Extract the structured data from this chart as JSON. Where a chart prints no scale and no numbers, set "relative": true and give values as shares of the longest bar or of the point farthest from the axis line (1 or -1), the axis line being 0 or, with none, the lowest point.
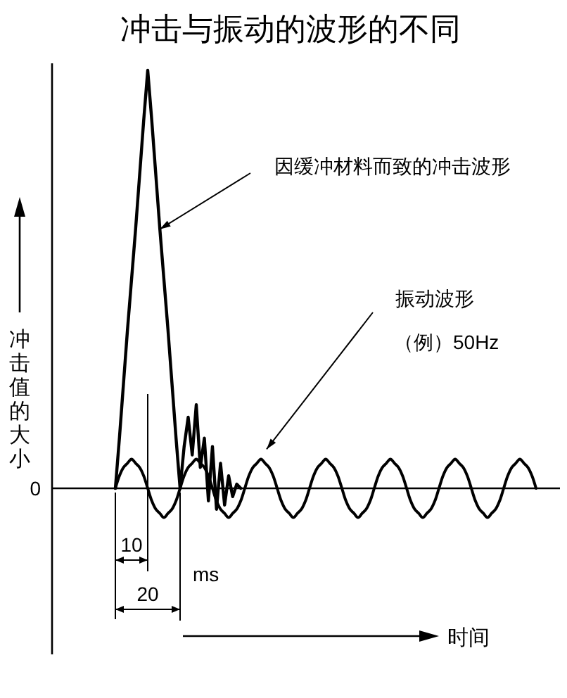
{
  "chart_data": {
    "type": "line",
    "title": "冲击与振动的波形的不同",
    "ylabel": "冲击值的大小",
    "relative": true,
    "line_style": "solid",
    "marker": "none",
    "legend": false,
    "categories": [
      null,
      null,
      null,
      null,
      null,
      null,
      null,
      null,
      null,
      null,
      null,
      null,
      null,
      null,
      null,
      null,
      null,
      null,
      null,
      null,
      null,
      null,
      null,
      null,
      null,
      null,
      null,
      null,
      null,
      null,
      null,
      null,
      null,
      null,
      null,
      null,
      null,
      null,
      null,
      null,
      null,
      null,
      null,
      null,
      null,
      null,
      null,
      null,
      null,
      null,
      null,
      null,
      null,
      null,
      null,
      null,
      null,
      null,
      null,
      null,
      null,
      null,
      null,
      null,
      null,
      null,
      null,
      null,
      null,
      null,
      null,
      null,
      null,
      null,
      null,
      null,
      null,
      null,
      null,
      null,
      null,
      null,
      null,
      null,
      null,
      null,
      null,
      null,
      null,
      null,
      null,
      null,
      null,
      null,
      null,
      null,
      null,
      null,
      null,
      null,
      null,
      null,
      null,
      null,
      null
    ],
    "ref_lines": [
      {
        "axis": "y",
        "value": 0,
        "label": "0"
      }
    ],
    "annotations": [
      "因缓冲材料而致的冲击波形",
      "振动波形",
      "（例）50Hz",
      "ms",
      "10",
      "20",
      "时间"
    ],
    "series": [
      {
        "color": "#000000",
        "values": [
          0,
          0.12,
          0.25,
          0.38,
          0.5,
          0.62,
          0.75,
          0.88,
          1,
          0.88,
          0.75,
          0.62,
          0.5,
          0.38,
          0.25,
          0.12,
          0,
          0.1,
          0.17,
          0.08,
          0.2,
          0.05,
          0.12,
          -0.03,
          0.1,
          -0.05,
          0.06,
          -0.04,
          0.03,
          -0.02,
          0.01,
          0,
          null,
          null,
          null,
          null,
          null,
          null,
          null,
          null,
          null,
          null,
          null,
          null,
          null,
          null,
          null,
          null,
          null,
          null,
          null,
          null,
          null,
          null,
          null,
          null,
          null,
          null,
          null,
          null,
          null,
          null,
          null,
          null,
          null,
          null,
          null,
          null,
          null,
          null,
          null,
          null,
          null,
          null,
          null,
          null,
          null,
          null,
          null,
          null,
          null,
          null,
          null,
          null,
          null,
          null,
          null,
          null,
          null,
          null,
          null,
          null,
          null,
          null,
          null,
          null,
          null,
          null,
          null,
          null,
          null,
          null,
          null,
          null,
          null
        ]
      },
      {
        "color": "#000000",
        "values": [
          0,
          0.03,
          0.05,
          0.06,
          0.07,
          0.06,
          0.05,
          0.03,
          0,
          -0.03,
          -0.05,
          -0.06,
          -0.07,
          -0.06,
          -0.05,
          -0.03,
          0,
          0.03,
          0.05,
          0.06,
          0.07,
          0.06,
          0.05,
          0.03,
          0,
          -0.03,
          -0.05,
          -0.06,
          -0.07,
          -0.06,
          -0.05,
          -0.03,
          0,
          0.03,
          0.05,
          0.06,
          0.07,
          0.06,
          0.05,
          0.03,
          0,
          -0.03,
          -0.05,
          -0.06,
          -0.07,
          -0.06,
          -0.05,
          -0.03,
          0,
          0.03,
          0.05,
          0.06,
          0.07,
          0.06,
          0.05,
          0.03,
          0,
          -0.03,
          -0.05,
          -0.06,
          -0.07,
          -0.06,
          -0.05,
          -0.03,
          0,
          0.03,
          0.05,
          0.06,
          0.07,
          0.06,
          0.05,
          0.03,
          0,
          -0.03,
          -0.05,
          -0.06,
          -0.07,
          -0.06,
          -0.05,
          -0.03,
          0,
          0.03,
          0.05,
          0.06,
          0.07,
          0.06,
          0.05,
          0.03,
          0,
          -0.03,
          -0.05,
          -0.06,
          -0.07,
          -0.06,
          -0.05,
          -0.03,
          0,
          0.03,
          0.05,
          0.06,
          0.07,
          0.06,
          0.05,
          0.03,
          0
        ]
      }
    ]
  }
}
